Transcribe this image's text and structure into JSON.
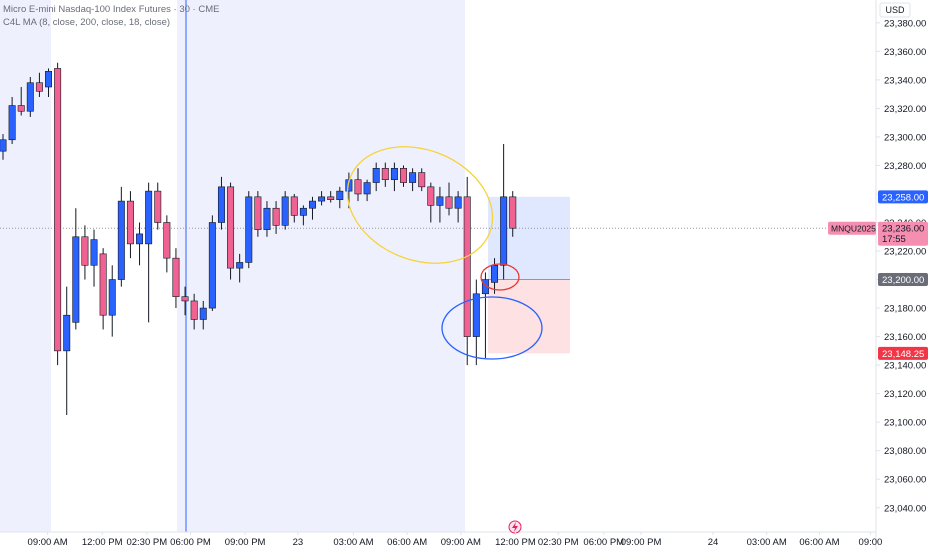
{
  "chart_data": {
    "type": "candlestick",
    "title": "Micro E-mini Nasdaq-100 Index Futures · 30 · CME",
    "subtitle": "C4L MA (8, close, 200, close, 18, close)",
    "currency": "USD",
    "open": [
      23290,
      23298,
      23322,
      23318,
      23338,
      23335,
      23348,
      23150,
      23170,
      23230,
      23210,
      23218,
      23175,
      23200,
      23255,
      23225,
      23225,
      23262,
      23240,
      23215,
      23188,
      23185,
      23172,
      23180,
      23240,
      23265,
      23208,
      23212,
      23258,
      23235,
      23250,
      23238,
      23258,
      23245,
      23250,
      23255,
      23258,
      23256,
      23262,
      23270,
      23260,
      23268,
      23278,
      23270,
      23278,
      23268,
      23275,
      23265,
      23252,
      23258,
      23250,
      23258,
      23160,
      23190,
      23198,
      23210,
      23258
    ],
    "high": [
      23302,
      23328,
      23335,
      23342,
      23345,
      23348,
      23352,
      23195,
      23250,
      23238,
      23235,
      23222,
      23210,
      23265,
      23262,
      23240,
      23268,
      23268,
      23245,
      23222,
      23195,
      23190,
      23185,
      23245,
      23272,
      23268,
      23218,
      23262,
      23262,
      23255,
      23255,
      23262,
      23260,
      23252,
      23258,
      23262,
      23262,
      23265,
      23275,
      23278,
      23270,
      23282,
      23282,
      23282,
      23280,
      23278,
      23278,
      23268,
      23265,
      23268,
      23262,
      23272,
      23200,
      23205,
      23215,
      23295,
      23262
    ],
    "low": [
      23284,
      23295,
      23315,
      23314,
      23328,
      23328,
      23140,
      23105,
      23165,
      23200,
      23195,
      23165,
      23160,
      23195,
      23215,
      23210,
      23170,
      23235,
      23205,
      23180,
      23175,
      23165,
      23165,
      23178,
      23235,
      23200,
      23198,
      23208,
      23230,
      23230,
      23232,
      23235,
      23240,
      23238,
      23242,
      23252,
      23254,
      23250,
      23250,
      23255,
      23255,
      23262,
      23265,
      23262,
      23265,
      23262,
      23262,
      23240,
      23240,
      23245,
      23240,
      23140,
      23140,
      23145,
      23190,
      23200,
      23230
    ],
    "close": [
      23298,
      23322,
      23318,
      23338,
      23332,
      23346,
      23150,
      23175,
      23230,
      23210,
      23228,
      23175,
      23200,
      23255,
      23225,
      23232,
      23262,
      23240,
      23215,
      23188,
      23185,
      23172,
      23180,
      23240,
      23265,
      23208,
      23212,
      23258,
      23235,
      23250,
      23238,
      23258,
      23245,
      23250,
      23255,
      23258,
      23256,
      23262,
      23270,
      23260,
      23268,
      23278,
      23270,
      23278,
      23268,
      23275,
      23265,
      23252,
      23258,
      23250,
      23258,
      23160,
      23190,
      23200,
      23210,
      23258,
      23236
    ],
    "up_color": "#2962ff",
    "down_color": "#f06292",
    "wick_color": "#131722",
    "xlim": [
      -0.33,
      95.8
    ],
    "xticks": [
      {
        "value": 4.9,
        "label": "09:00 AM"
      },
      {
        "value": 10.9,
        "label": "12:00 PM"
      },
      {
        "value": 15.8,
        "label": "02:30 PM"
      },
      {
        "value": 20.6,
        "label": "06:00 PM"
      },
      {
        "value": 26.6,
        "label": "09:00 PM"
      },
      {
        "value": 32.4,
        "label": "23"
      },
      {
        "value": 38.5,
        "label": "03:00 AM"
      },
      {
        "value": 44.4,
        "label": "06:00 AM"
      },
      {
        "value": 50.3,
        "label": "09:00 AM"
      },
      {
        "value": 56.3,
        "label": "12:00 PM"
      },
      {
        "value": 61,
        "label": "02:30 PM"
      },
      {
        "value": 66,
        "label": "06:00 PM"
      },
      {
        "value": 70.1,
        "label": "09:00 PM"
      },
      {
        "value": 78,
        "label": "24"
      },
      {
        "value": 83.9,
        "label": "03:00 AM"
      },
      {
        "value": 89.7,
        "label": "06:00 AM"
      },
      {
        "value": 95.3,
        "label": "09:00"
      }
    ],
    "ylim": [
      23023,
      23396
    ],
    "yticks": [
      {
        "value": 23380,
        "label": "23,380.00"
      },
      {
        "value": 23360,
        "label": "23,360.00"
      },
      {
        "value": 23340,
        "label": "23,340.00"
      },
      {
        "value": 23320,
        "label": "23,320.00"
      },
      {
        "value": 23300,
        "label": "23,300.00"
      },
      {
        "value": 23280,
        "label": "23,280.00"
      },
      {
        "value": 23260,
        "label": "23,260.00"
      },
      {
        "value": 23240,
        "label": "23,240.00"
      },
      {
        "value": 23220,
        "label": "23,220.00"
      },
      {
        "value": 23200,
        "label": "23,200.00"
      },
      {
        "value": 23180,
        "label": "23,180.00"
      },
      {
        "value": 23160,
        "label": "23,160.00"
      },
      {
        "value": 23140,
        "label": "23,140.00"
      },
      {
        "value": 23120,
        "label": "23,120.00"
      },
      {
        "value": 23100,
        "label": "23,100.00"
      },
      {
        "value": 23080,
        "label": "23,080.00"
      },
      {
        "value": 23060,
        "label": "23,060.00"
      },
      {
        "value": 23040,
        "label": "23,040.00"
      }
    ],
    "price_labels": [
      {
        "value": 23258,
        "label": "23,258.00",
        "color": "#2962ff"
      },
      {
        "value": 23200,
        "label": "23,200.00",
        "color": "#6a6d78"
      },
      {
        "value": 23148.25,
        "label": "23,148.25",
        "color": "#f23645"
      }
    ],
    "current_price": {
      "symbol": "MNQU2025",
      "value": 23236,
      "label": "23,236.00",
      "countdown": "17:55",
      "color": "#f48fb1"
    }
  }
}
